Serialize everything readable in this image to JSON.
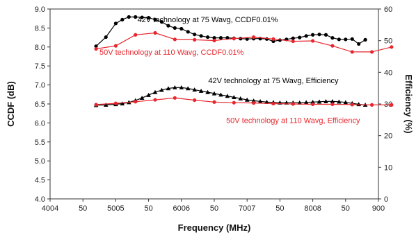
{
  "chart_data": {
    "type": "line",
    "xlabel": "Frequency (MHz)",
    "ylabel_left": "CCDF (dB)",
    "ylabel_right": "Efficiency (%)",
    "x_tick_labels": [
      "4004",
      "50",
      "5005",
      "50",
      "6006",
      "50",
      "7007",
      "50",
      "8008",
      "50",
      "900"
    ],
    "y_left_ticks": [
      "4.0",
      "4.5",
      "5.0",
      "5.5",
      "6.0",
      "6.5",
      "7.0",
      "7.5",
      "8.0",
      "8.5",
      "9.0"
    ],
    "y_right_ticks": [
      "0",
      "10",
      "20",
      "30",
      "40",
      "50",
      "60"
    ],
    "xlim": [
      400,
      900
    ],
    "ylim_left": [
      4.0,
      9.0
    ],
    "ylim_right": [
      0,
      60
    ],
    "colors": {
      "black_series": "#000000",
      "red_series": "#e8262d"
    },
    "series": [
      {
        "name": "42V technology at 75 Wavg, CCDF0.01%",
        "axis": "left",
        "marker": "circle",
        "color": "#000000",
        "x": [
          470,
          485,
          500,
          510,
          520,
          530,
          540,
          550,
          560,
          570,
          580,
          590,
          600,
          610,
          620,
          630,
          640,
          650,
          660,
          670,
          680,
          690,
          700,
          710,
          720,
          730,
          740,
          750,
          760,
          770,
          780,
          790,
          800,
          810,
          820,
          830,
          840,
          850,
          860,
          870,
          880
        ],
        "y": [
          8.02,
          8.26,
          8.62,
          8.72,
          8.79,
          8.79,
          8.78,
          8.77,
          8.72,
          8.66,
          8.56,
          8.5,
          8.48,
          8.4,
          8.33,
          8.29,
          8.26,
          8.24,
          8.24,
          8.24,
          8.23,
          8.22,
          8.21,
          8.22,
          8.22,
          8.21,
          8.15,
          8.18,
          8.2,
          8.23,
          8.25,
          8.29,
          8.32,
          8.33,
          8.32,
          8.24,
          8.2,
          8.2,
          8.21,
          8.08,
          8.19
        ]
      },
      {
        "name": "50V technology at 110 Wavg, CCDF0.01%",
        "axis": "left",
        "marker": "circle",
        "color": "#e8262d",
        "x": [
          470,
          500,
          530,
          560,
          590,
          620,
          650,
          680,
          710,
          740,
          770,
          800,
          830,
          860,
          890,
          920
        ],
        "y": [
          7.95,
          8.03,
          8.32,
          8.37,
          8.2,
          8.19,
          8.17,
          8.22,
          8.26,
          8.21,
          8.15,
          8.16,
          8.03,
          7.87,
          7.87,
          8.0
        ]
      },
      {
        "name": "42V technology at 75 Wavg, Efficiency",
        "axis": "right",
        "marker": "triangle",
        "color": "#000000",
        "x": [
          470,
          485,
          500,
          510,
          520,
          530,
          540,
          550,
          560,
          570,
          580,
          590,
          600,
          610,
          620,
          630,
          640,
          650,
          660,
          670,
          680,
          690,
          700,
          710,
          720,
          730,
          740,
          750,
          760,
          770,
          780,
          790,
          800,
          810,
          820,
          830,
          840,
          850,
          860,
          870,
          880
        ],
        "y": [
          29.6,
          29.7,
          29.9,
          30.1,
          30.5,
          31.1,
          31.9,
          32.8,
          33.7,
          34.4,
          34.9,
          35.2,
          35.2,
          34.9,
          34.5,
          34.1,
          33.7,
          33.3,
          32.9,
          32.5,
          32.1,
          31.7,
          31.3,
          31.0,
          30.8,
          30.6,
          30.5,
          30.4,
          30.4,
          30.4,
          30.4,
          30.5,
          30.6,
          30.7,
          30.8,
          30.8,
          30.7,
          30.5,
          30.2,
          29.9,
          29.7
        ]
      },
      {
        "name": "50V technology at 110 Wavg, Efficiency",
        "axis": "right",
        "marker": "circle",
        "color": "#e8262d",
        "x": [
          470,
          500,
          530,
          560,
          590,
          620,
          650,
          680,
          710,
          740,
          770,
          800,
          830,
          860,
          890,
          920
        ],
        "y": [
          29.8,
          30.2,
          30.7,
          31.3,
          31.9,
          31.2,
          30.6,
          30.4,
          30.3,
          30.1,
          30.0,
          29.9,
          29.9,
          29.8,
          29.7,
          29.7
        ]
      }
    ],
    "annotations": [
      {
        "text": "42V technology at 75 Wavg, CCDF0.01%",
        "color": "#000000",
        "anchor_x": 640,
        "anchor_y_left": 8.65
      },
      {
        "text": "50V technology at 110 Wavg, CCDF0.01%",
        "color": "#e8262d",
        "anchor_x": 585,
        "anchor_y_left": 7.8
      },
      {
        "text": "42V technology at 75 Wavg, Efficiency",
        "color": "#000000",
        "anchor_x": 740,
        "anchor_y_left": 7.05
      },
      {
        "text": "50V technology at 110 Wavg, Efficiency",
        "color": "#e8262d",
        "anchor_x": 770,
        "anchor_y_left": 6.0
      }
    ]
  }
}
